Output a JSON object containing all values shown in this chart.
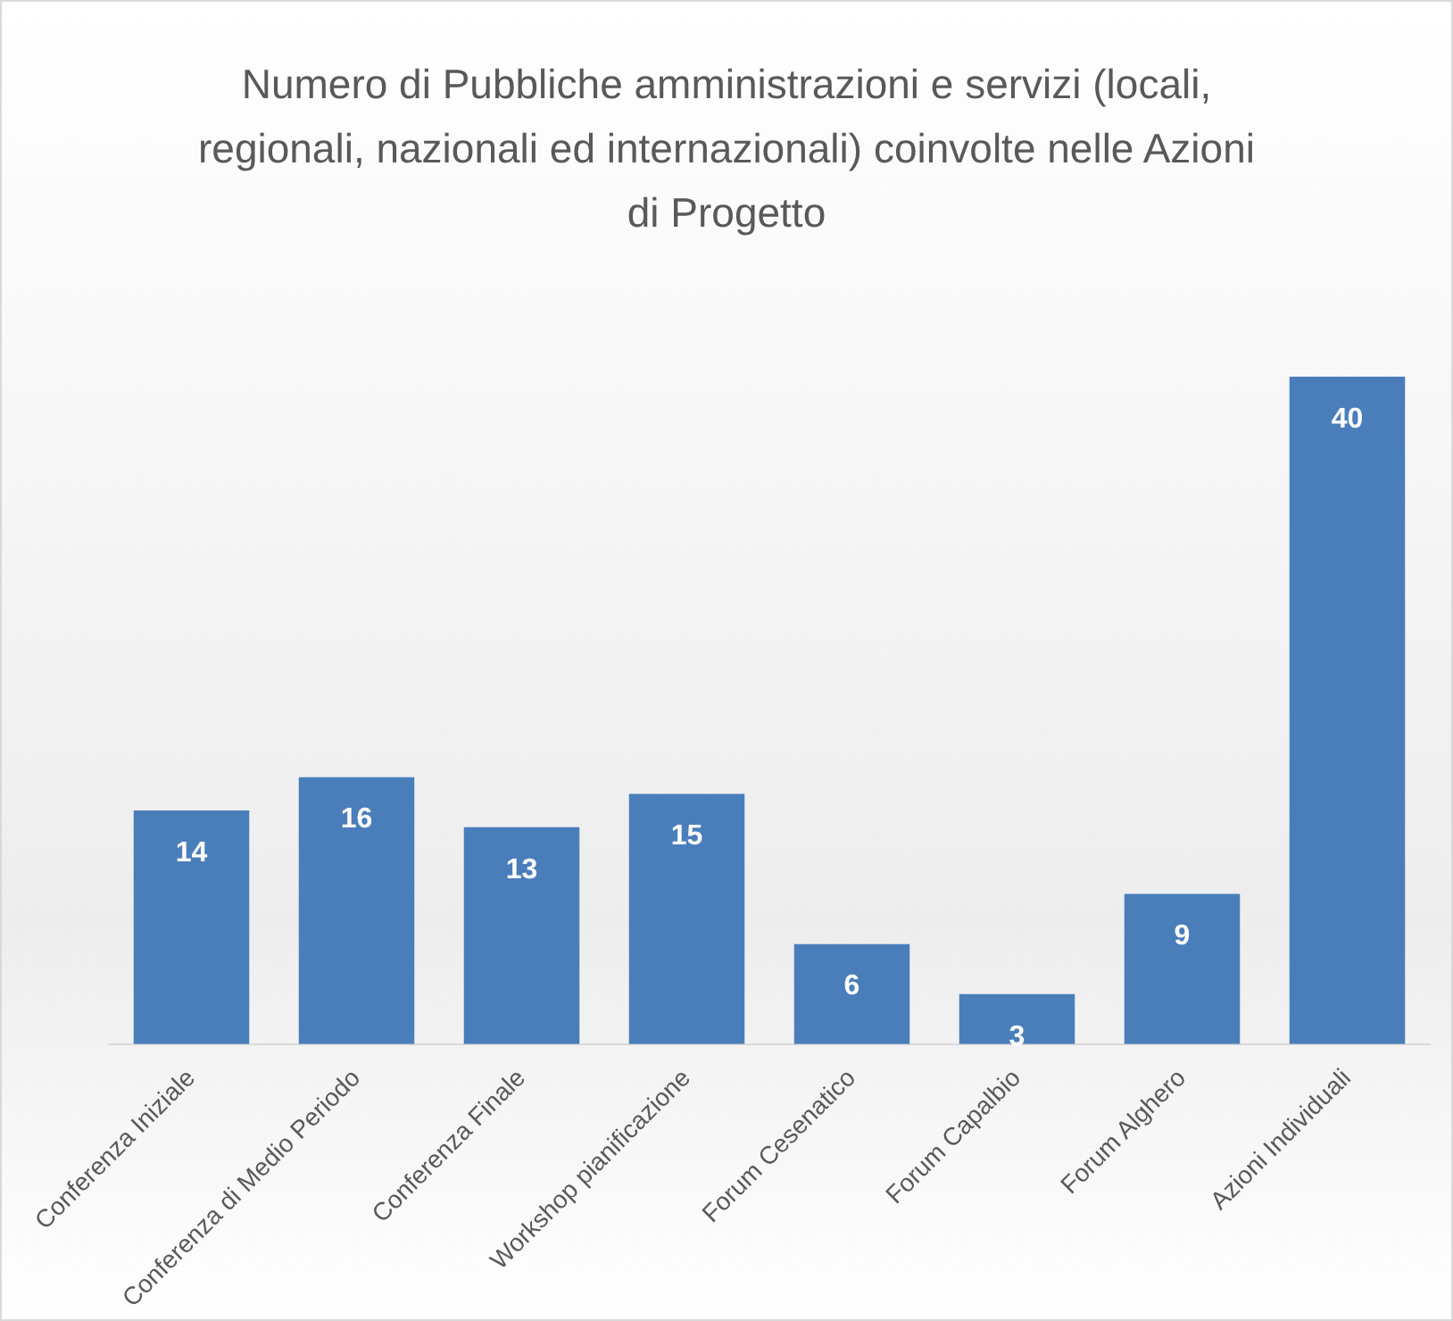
{
  "chart_data": {
    "type": "bar",
    "title": "Numero di Pubbliche amministrazioni e servizi (locali, regionali, nazionali ed internazionali) coinvolte nelle Azioni di Progetto",
    "categories": [
      "Conferenza Iniziale",
      "Conferenza di Medio Periodo",
      "Conferenza Finale",
      "Workshop pianificazione",
      "Forum Cesenatico",
      "Forum Capalbio",
      "Forum Alghero",
      "Azioni Individuali"
    ],
    "values": [
      14,
      16,
      13,
      15,
      6,
      3,
      9,
      40
    ],
    "color": "#4a7ebb",
    "data_labels": true,
    "grid": false,
    "legend": false
  }
}
